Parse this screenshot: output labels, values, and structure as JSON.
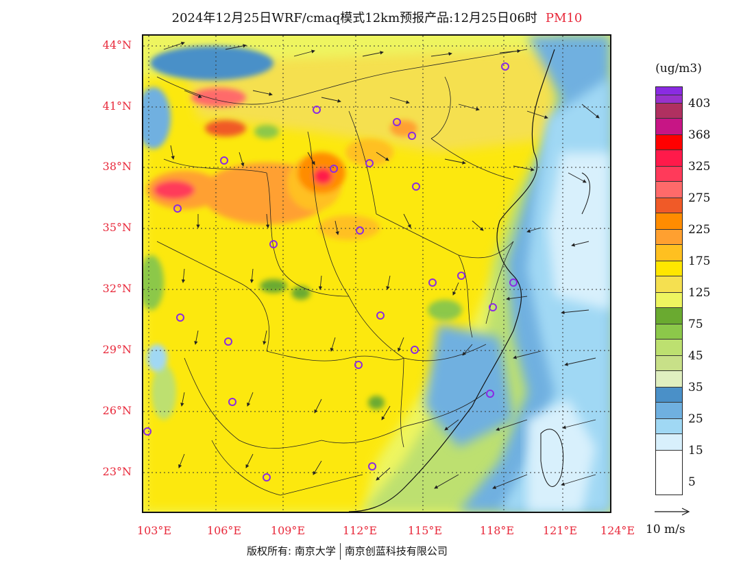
{
  "title": {
    "main": "2024年12月25日WRF/cmaq模式12km预报产品:12月25日06时",
    "pollutant": "PM10"
  },
  "lat_labels": [
    "44°N",
    "41°N",
    "38°N",
    "35°N",
    "32°N",
    "29°N",
    "26°N",
    "23°N"
  ],
  "lon_labels": [
    "103°E",
    "106°E",
    "109°E",
    "112°E",
    "115°E",
    "118°E",
    "121°E",
    "124°E"
  ],
  "legend": {
    "unit": "(ug/m3)",
    "colors": [
      "#8a2be2",
      "#9932cc",
      "#b03060",
      "#c71585",
      "#ff0000",
      "#ff1a4a",
      "#ff3a5a",
      "#ff6a6a",
      "#f05a28",
      "#ff8c00",
      "#ffa030",
      "#ffc020",
      "#ffe600",
      "#f5e050",
      "#eef560",
      "#6aaa30",
      "#8cc84a",
      "#bde070",
      "#c8e088",
      "#e0efc0",
      "#4a90c8",
      "#6fb0e0",
      "#a0d8f4",
      "#d8f0fc",
      "#ffffff"
    ],
    "ticks": [
      "403",
      "368",
      "325",
      "275",
      "225",
      "175",
      "125",
      "75",
      "45",
      "35",
      "25",
      "15",
      "5"
    ]
  },
  "reference_vector": {
    "label": "10 m/s"
  },
  "footer": {
    "copyright": "版权所有: 南京大学",
    "company": "南京创蓝科技有限公司"
  }
}
